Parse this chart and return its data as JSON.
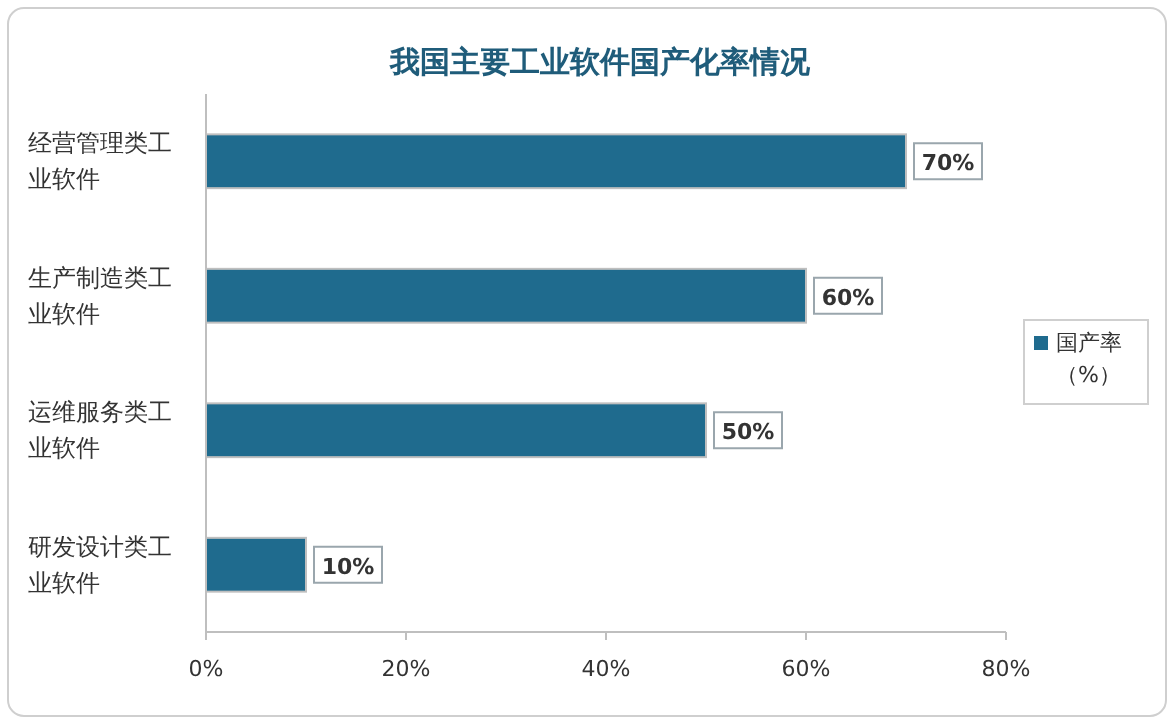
{
  "chart_data": {
    "type": "bar",
    "orientation": "horizontal",
    "title": "我国主要工业软件国产化率情况",
    "categories": [
      "经营管理类工业软件",
      "生产制造类工业软件",
      "运维服务类工业软件",
      "研发设计类工业软件"
    ],
    "series": [
      {
        "name": "国产率（%）",
        "color": "#1f6b8e",
        "values": [
          70,
          60,
          50,
          10
        ],
        "value_labels": [
          "70%",
          "60%",
          "50%",
          "10%"
        ]
      }
    ],
    "xlim": [
      0,
      80
    ],
    "xticks": [
      {
        "value": 0,
        "label": "0%"
      },
      {
        "value": 20,
        "label": "20%"
      },
      {
        "value": 40,
        "label": "40%"
      },
      {
        "value": 60,
        "label": "60%"
      },
      {
        "value": 80,
        "label": "80%"
      }
    ],
    "legend": "right"
  }
}
